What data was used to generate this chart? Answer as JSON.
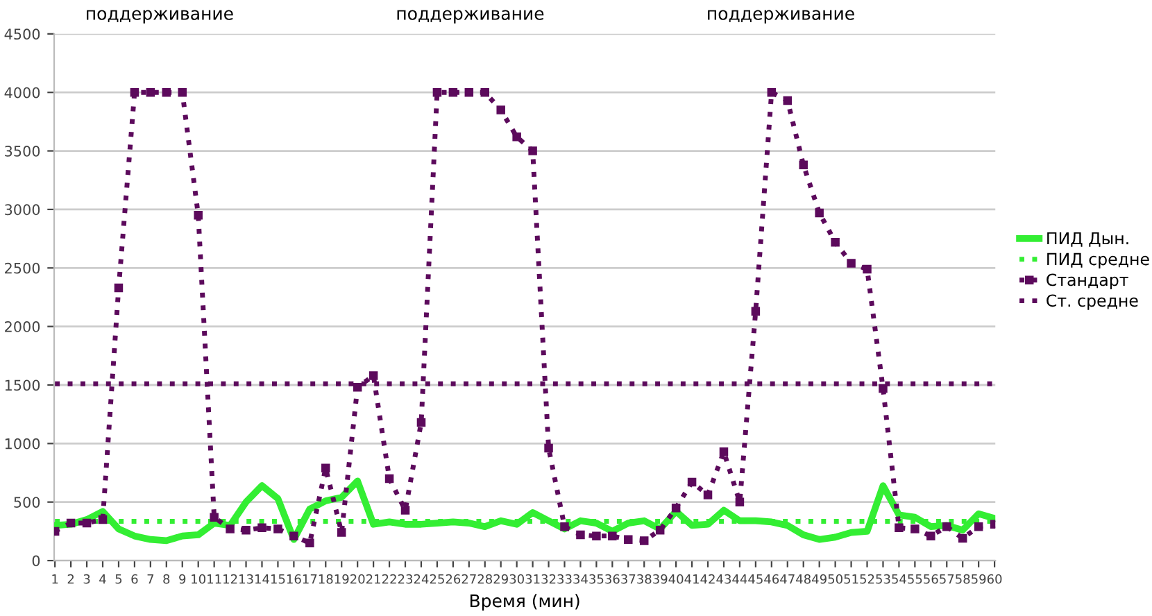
{
  "chart_data": {
    "type": "line",
    "xlabel": "Время (мин)",
    "categories": [
      "1",
      "2",
      "3",
      "4",
      "5",
      "6",
      "7",
      "8",
      "9",
      "10",
      "11",
      "12",
      "13",
      "14",
      "15",
      "16",
      "17",
      "18",
      "19",
      "20",
      "21",
      "22",
      "23",
      "24",
      "25",
      "26",
      "27",
      "28",
      "29",
      "30",
      "31",
      "32",
      "33",
      "34",
      "35",
      "36",
      "37",
      "38",
      "39",
      "40",
      "41",
      "42",
      "43",
      "44",
      "45",
      "46",
      "47",
      "48",
      "49",
      "50",
      "51",
      "52",
      "53",
      "54",
      "55",
      "56",
      "57",
      "58",
      "59",
      "60"
    ],
    "ylim": [
      0,
      4500
    ],
    "yticks": [
      0,
      500,
      1000,
      1500,
      2000,
      2500,
      3000,
      3500,
      4000,
      4500
    ],
    "grid": "y",
    "legend": "right",
    "series": [
      {
        "name": "ПИД Дын.",
        "color": "#33ee33",
        "line_style": "solid",
        "marker": "none",
        "values": [
          300,
          310,
          350,
          420,
          270,
          210,
          180,
          170,
          210,
          220,
          320,
          300,
          500,
          640,
          530,
          180,
          440,
          510,
          540,
          680,
          310,
          330,
          310,
          310,
          320,
          330,
          320,
          290,
          340,
          310,
          410,
          340,
          270,
          340,
          320,
          250,
          320,
          340,
          270,
          420,
          300,
          310,
          430,
          340,
          340,
          330,
          300,
          220,
          180,
          200,
          240,
          250,
          640,
          390,
          370,
          290,
          300,
          260,
          400,
          360
        ]
      },
      {
        "name": "ПИД средне",
        "color": "#33ee33",
        "line_style": "dotted",
        "marker": "none",
        "values": [
          335,
          335,
          335,
          335,
          335,
          335,
          335,
          335,
          335,
          335,
          335,
          335,
          335,
          335,
          335,
          335,
          335,
          335,
          335,
          335,
          335,
          335,
          335,
          335,
          335,
          335,
          335,
          335,
          335,
          335,
          335,
          335,
          335,
          335,
          335,
          335,
          335,
          335,
          335,
          335,
          335,
          335,
          335,
          335,
          335,
          335,
          335,
          335,
          335,
          335,
          335,
          335,
          335,
          335,
          335,
          335,
          335,
          335,
          335,
          335
        ]
      },
      {
        "name": "Стандарт",
        "color": "#5c0a5c",
        "line_style": "dotted",
        "marker": "square",
        "values": [
          250,
          320,
          320,
          350,
          2330,
          4000,
          4000,
          4000,
          4000,
          2950,
          370,
          270,
          260,
          280,
          270,
          210,
          150,
          790,
          240,
          1480,
          1580,
          700,
          430,
          1180,
          4000,
          4000,
          4000,
          4000,
          3850,
          3620,
          3500,
          960,
          290,
          220,
          210,
          210,
          180,
          170,
          260,
          450,
          670,
          560,
          930,
          500,
          2130,
          4000,
          3930,
          3380,
          2970,
          2720,
          2540,
          2490,
          1470,
          280,
          270,
          210,
          290,
          190,
          290,
          310
        ]
      },
      {
        "name": "Ст. средне",
        "color": "#5c0a5c",
        "line_style": "dotted",
        "marker": "none",
        "values": [
          1510,
          1510,
          1510,
          1510,
          1510,
          1510,
          1510,
          1510,
          1510,
          1510,
          1510,
          1510,
          1510,
          1510,
          1510,
          1510,
          1510,
          1510,
          1510,
          1510,
          1510,
          1510,
          1510,
          1510,
          1510,
          1510,
          1510,
          1510,
          1510,
          1510,
          1510,
          1510,
          1510,
          1510,
          1510,
          1510,
          1510,
          1510,
          1510,
          1510,
          1510,
          1510,
          1510,
          1510,
          1510,
          1510,
          1510,
          1510,
          1510,
          1510,
          1510,
          1510,
          1510,
          1510,
          1510,
          1510,
          1510,
          1510,
          1510,
          1510
        ]
      }
    ],
    "annotations": [
      "поддерживание",
      "поддерживание",
      "поддерживание"
    ]
  }
}
